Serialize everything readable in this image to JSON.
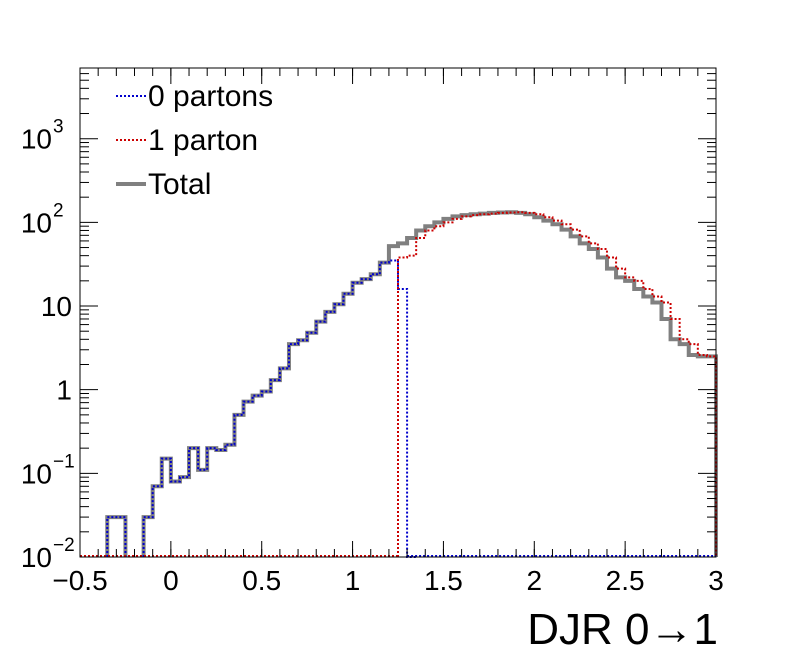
{
  "chart_data": {
    "type": "line",
    "title": "",
    "xlabel": "DJR 0→1",
    "ylabel": "",
    "xlim": [
      -0.5,
      3
    ],
    "ylim": [
      0.01,
      7000
    ],
    "yscale": "log",
    "grid": false,
    "legend_position": "top-left",
    "x_ticks": [
      -0.5,
      0,
      0.5,
      1,
      1.5,
      2,
      2.5,
      3
    ],
    "x_tick_labels": [
      "−0.5",
      "0",
      "0.5",
      "1",
      "1.5",
      "2",
      "2.5",
      "3"
    ],
    "y_ticks": [
      {
        "value": 0.01,
        "base": "10",
        "exp": "−2"
      },
      {
        "value": 0.1,
        "base": "10",
        "exp": "−1"
      },
      {
        "value": 1,
        "base": "1",
        "exp": ""
      },
      {
        "value": 10,
        "base": "10",
        "exp": ""
      },
      {
        "value": 100,
        "base": "10",
        "exp": "2"
      },
      {
        "value": 1000,
        "base": "10",
        "exp": "3"
      }
    ],
    "bin_width": 0.05,
    "series": [
      {
        "name": "0 partons",
        "color": "#0000cc",
        "style": "dotted",
        "x": [
          -0.35,
          -0.3,
          -0.15,
          -0.1,
          -0.05,
          0,
          0.05,
          0.1,
          0.15,
          0.2,
          0.25,
          0.3,
          0.35,
          0.4,
          0.45,
          0.5,
          0.55,
          0.6,
          0.65,
          0.7,
          0.75,
          0.8,
          0.85,
          0.9,
          0.95,
          1.0,
          1.05,
          1.1,
          1.15,
          1.2,
          1.25,
          1.3
        ],
        "values": [
          0.03,
          0.03,
          0.03,
          0.07,
          0.15,
          0.08,
          0.09,
          0.2,
          0.11,
          0.2,
          0.19,
          0.22,
          0.5,
          0.72,
          0.85,
          0.95,
          1.3,
          1.8,
          3.5,
          3.9,
          4.8,
          6.5,
          8.5,
          10.5,
          14,
          19,
          21,
          24,
          33,
          35,
          16,
          0.01
        ]
      },
      {
        "name": "1 parton",
        "color": "#cc0000",
        "style": "dotted",
        "x": [
          1.25,
          1.3,
          1.35,
          1.4,
          1.45,
          1.5,
          1.55,
          1.6,
          1.65,
          1.7,
          1.75,
          1.8,
          1.85,
          1.9,
          1.95,
          2.0,
          2.05,
          2.1,
          2.15,
          2.2,
          2.25,
          2.3,
          2.35,
          2.4,
          2.45,
          2.5,
          2.55,
          2.6,
          2.65,
          2.7,
          2.75,
          2.8,
          2.85,
          2.9,
          2.95
        ],
        "values": [
          38,
          40,
          65,
          80,
          90,
          100,
          110,
          118,
          122,
          125,
          127,
          130,
          131,
          132,
          130,
          125,
          115,
          105,
          95,
          82,
          68,
          56,
          48,
          38,
          28,
          22,
          20,
          16,
          13,
          11,
          7,
          4,
          3.5,
          2.6,
          2.5
        ]
      },
      {
        "name": "Total",
        "color": "#808080",
        "style": "solid",
        "x": [
          -0.35,
          -0.3,
          -0.15,
          -0.1,
          -0.05,
          0,
          0.05,
          0.1,
          0.15,
          0.2,
          0.25,
          0.3,
          0.35,
          0.4,
          0.45,
          0.5,
          0.55,
          0.6,
          0.65,
          0.7,
          0.75,
          0.8,
          0.85,
          0.9,
          0.95,
          1.0,
          1.05,
          1.1,
          1.15,
          1.2,
          1.25,
          1.3,
          1.35,
          1.4,
          1.45,
          1.5,
          1.55,
          1.6,
          1.65,
          1.7,
          1.75,
          1.8,
          1.85,
          1.9,
          1.95,
          2.0,
          2.05,
          2.1,
          2.15,
          2.2,
          2.25,
          2.3,
          2.35,
          2.4,
          2.45,
          2.5,
          2.55,
          2.6,
          2.65,
          2.7,
          2.75,
          2.8,
          2.85,
          2.9,
          2.95
        ],
        "values": [
          0.03,
          0.03,
          0.03,
          0.07,
          0.15,
          0.08,
          0.09,
          0.2,
          0.11,
          0.2,
          0.19,
          0.22,
          0.5,
          0.72,
          0.85,
          0.95,
          1.3,
          1.8,
          3.5,
          3.9,
          4.8,
          6.5,
          8.5,
          10.5,
          14,
          19,
          21,
          24,
          33,
          52,
          56,
          65,
          80,
          90,
          100,
          110,
          118,
          122,
          125,
          127,
          130,
          131,
          132,
          130,
          125,
          115,
          105,
          95,
          82,
          68,
          56,
          48,
          38,
          28,
          22,
          20,
          16,
          13,
          11,
          7,
          4,
          3.5,
          2.6,
          2.5,
          2.5
        ]
      }
    ]
  }
}
